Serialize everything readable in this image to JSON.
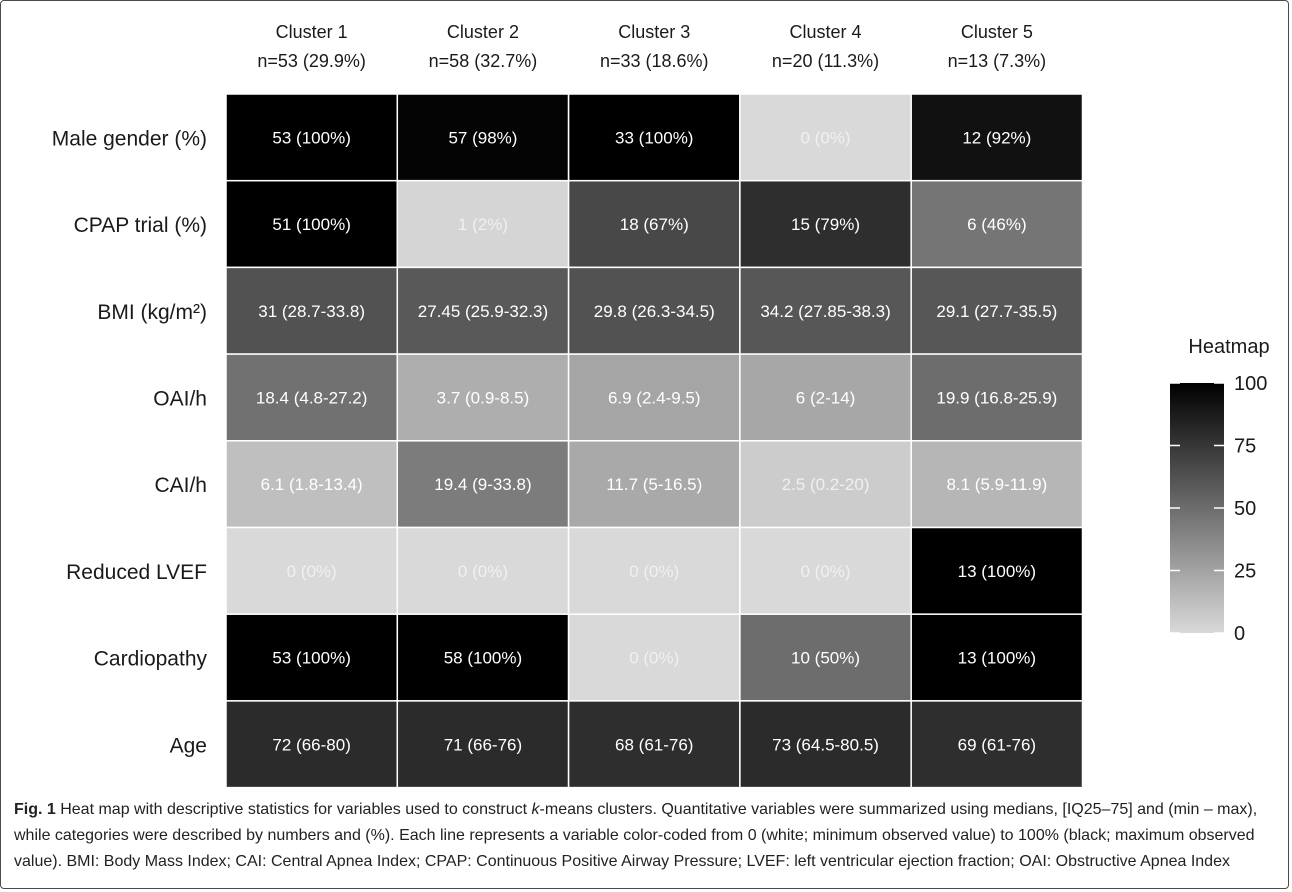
{
  "figure": {
    "caption": {
      "label": "Fig. 1",
      "part1": " Heat map with descriptive statistics for variables used to construct ",
      "k": "k",
      "part2": "-means clusters. Quantitative variables were summarized using medians, [IQ25–75] and (min – max), while categories were described by numbers and (%). Each line represents a variable color-coded from 0 (white; minimum observed value) to 100% (black; maximum observed value). BMI: Body Mass Index; CAI: Central Apnea Index; CPAP: Continuous Positive Airway Pressure; LVEF: left ventricular ejection fraction; OAI: Obstructive Apnea Index"
    }
  },
  "chart_data": {
    "type": "heatmap",
    "columns": [
      {
        "name": "Cluster 1",
        "n": "n=53 (29.9%)"
      },
      {
        "name": "Cluster 2",
        "n": "n=58 (32.7%)"
      },
      {
        "name": "Cluster 3",
        "n": "n=33 (18.6%)"
      },
      {
        "name": "Cluster 4",
        "n": "n=20 (11.3%)"
      },
      {
        "name": "Cluster 5",
        "n": "n=13 (7.3%)"
      }
    ],
    "rows": [
      {
        "label": "Male gender (%)",
        "cells": [
          "53 (100%)",
          "57 (98%)",
          "33 (100%)",
          "0 (0%)",
          "12 (92%)"
        ],
        "values": [
          100,
          98,
          100,
          0,
          92
        ]
      },
      {
        "label": "CPAP trial (%)",
        "cells": [
          "51 (100%)",
          "1 (2%)",
          "18 (67%)",
          "15 (79%)",
          "6 (46%)"
        ],
        "values": [
          100,
          2,
          67,
          79,
          46
        ]
      },
      {
        "label": "BMI (kg/m²)",
        "cells": [
          "31 (28.7-33.8)",
          "27.45 (25.9-32.3)",
          "29.8 (26.3-34.5)",
          "34.2 (27.85-38.3)",
          "29.1 (27.7-35.5)"
        ],
        "values": [
          62,
          59,
          62,
          60,
          60
        ]
      },
      {
        "label": "OAI/h",
        "cells": [
          "18.4 (4.8-27.2)",
          "3.7 (0.9-8.5)",
          "6.9 (2.4-9.5)",
          "6 (2-14)",
          "19.9 (16.8-25.9)"
        ],
        "values": [
          48,
          20,
          24,
          23,
          50
        ]
      },
      {
        "label": "CAI/h",
        "cells": [
          "6.1 (1.8-13.4)",
          "19.4 (9-33.8)",
          "11.7 (5-16.5)",
          "2.5 (0.2-20)",
          "8.1 (5.9-11.9)"
        ],
        "values": [
          12,
          43,
          22,
          6,
          16
        ]
      },
      {
        "label": "Reduced LVEF",
        "cells": [
          "0 (0%)",
          "0 (0%)",
          "0 (0%)",
          "0 (0%)",
          "13 (100%)"
        ],
        "values": [
          0,
          0,
          0,
          0,
          100
        ]
      },
      {
        "label": "Cardiopathy",
        "cells": [
          "53 (100%)",
          "58 (100%)",
          "0 (0%)",
          "10 (50%)",
          "13 (100%)"
        ],
        "values": [
          100,
          100,
          0,
          50,
          100
        ]
      },
      {
        "label": "Age",
        "cells": [
          "72 (66-80)",
          "71 (66-76)",
          "68 (61-76)",
          "73 (64.5-80.5)",
          "69 (61-76)"
        ],
        "values": [
          80,
          80,
          79,
          80,
          79
        ]
      }
    ],
    "legend": {
      "title": "Heatmap",
      "ticks": [
        "100",
        "75",
        "50",
        "25",
        "0"
      ],
      "tick_values": [
        100,
        75,
        50,
        25,
        0
      ],
      "range": [
        0,
        100
      ],
      "low_color": "#d9d9d9",
      "high_color": "#000000"
    },
    "colors": {
      "light_text": "#f0f0f0",
      "dark_text": "#ffffff",
      "label_text": "#1a1a1a",
      "cell_border": "#ffffff"
    }
  }
}
